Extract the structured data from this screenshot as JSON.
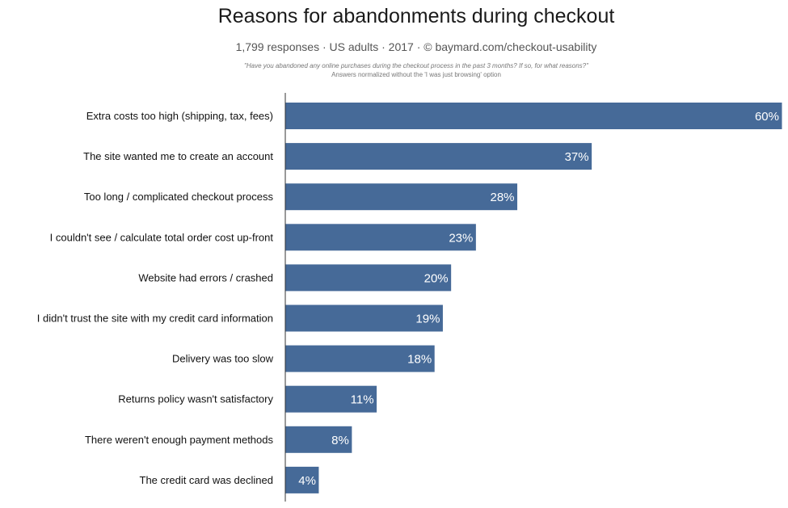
{
  "chart_data": {
    "type": "bar",
    "orientation": "horizontal",
    "title": "Reasons for abandonments during checkout",
    "subtitle": "1,799 responses  ·  US adults  ·  2017  ·  ©  baymard.com/checkout-usability",
    "question": "\"Have you abandoned any online purchases during the checkout process in the past 3 months? If so, for what reasons?\"",
    "note": "Answers normalized without the 'I was just browsing' option",
    "categories": [
      "Extra costs too high (shipping, tax, fees)",
      "The site wanted me to create an account",
      "Too long / complicated checkout process",
      "I couldn't see / calculate total order cost up-front",
      "Website had errors / crashed",
      "I didn't trust the site with my credit card information",
      "Delivery was too slow",
      "Returns policy wasn't satisfactory",
      "There weren't enough payment methods",
      "The credit card was declined"
    ],
    "values": [
      60,
      37,
      28,
      23,
      20,
      19,
      18,
      11,
      8,
      4
    ],
    "value_suffix": "%",
    "xlim": [
      0,
      60
    ],
    "bar_color": "#466a98",
    "grid": false
  }
}
